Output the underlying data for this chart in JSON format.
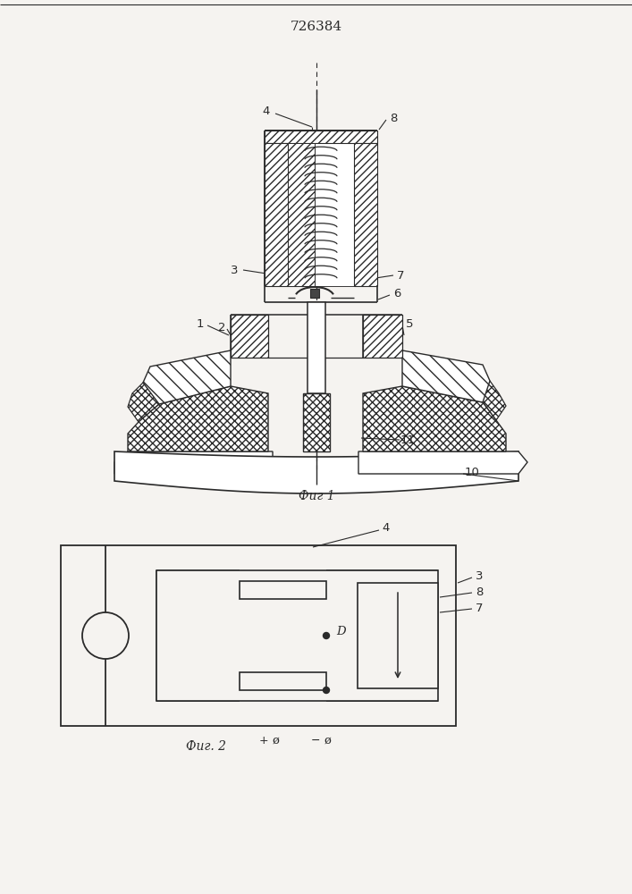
{
  "title": "726384",
  "fig1_caption": "Фиг 1",
  "fig2_caption": "Фиг. 2",
  "bg_color": "#f5f3f0",
  "line_color": "#2a2a2a",
  "white": "#ffffff"
}
